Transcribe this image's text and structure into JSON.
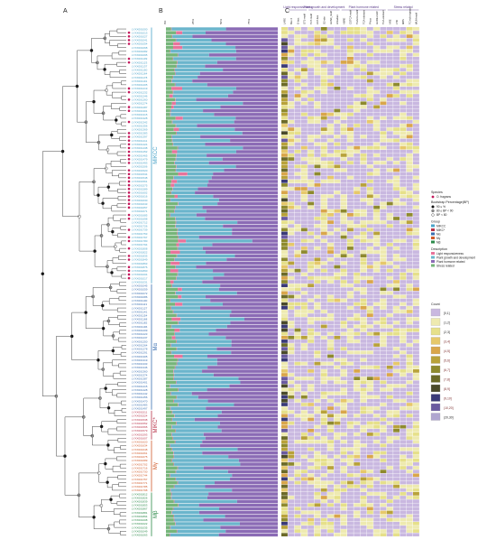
{
  "panels": [
    {
      "id": "tree",
      "label": "A"
    },
    {
      "id": "bars",
      "label": "B"
    },
    {
      "id": "heat",
      "label": "C"
    }
  ],
  "groups": [
    {
      "name": "MIKC C",
      "label": "MIKCC",
      "color": "#4aa3c8",
      "rows": [
        0,
        68
      ]
    },
    {
      "name": "Mα",
      "label": "Mα",
      "color": "#3a6fb0",
      "rows": [
        69,
        102
      ]
    },
    {
      "name": "MIKC*",
      "label": "MIKC*",
      "color": "#b8334a",
      "rows": [
        103,
        110
      ]
    },
    {
      "name": "Mγ",
      "label": "Mγ",
      "color": "#d05a2a",
      "rows": [
        111,
        124
      ]
    },
    {
      "name": "Mβ",
      "label": "Mβ",
      "color": "#2c8a4a",
      "rows": [
        125,
        136
      ]
    }
  ],
  "gene_prefix": "LYXX00",
  "rows": 137,
  "bar_axis_ticks": [
    "0%",
    "25%",
    "50%",
    "75%"
  ],
  "heat_categories": [
    {
      "name": "Light responsiveness",
      "span": [
        1,
        3
      ]
    },
    {
      "name": "Plant growth and development",
      "span": [
        4,
        8
      ]
    },
    {
      "name": "Plant hormone related",
      "span": [
        9,
        15
      ]
    },
    {
      "name": "Stress related",
      "span": [
        16,
        20
      ]
    }
  ],
  "heat_columns": [
    "LARE",
    "Box 4",
    "G-box",
    "GT1-motif",
    "TCT-motif",
    "CAT-box",
    "O2-site",
    "GCN4_motif",
    "circadian",
    "ABRE",
    "CGTCA-motif",
    "TGACG-motif",
    "TGA-element",
    "P-box",
    "GARE-motif",
    "TCA-element",
    "ARE",
    "LTR",
    "MBS",
    "TC-rich repeats",
    "WUN-motif"
  ],
  "legend": {
    "species": {
      "title": "Species",
      "items": [
        {
          "label": "O. fragrans",
          "color": "#c2185b"
        }
      ]
    },
    "bootstrap": {
      "title": "Bootstrap Percentage(BP)",
      "items": [
        "90 ≤ %",
        "80 ≤ BP < 90",
        "BP < 80"
      ]
    },
    "group": {
      "title": "Group",
      "items": [
        {
          "label": "MIKCC",
          "color": "#4aa3c8"
        },
        {
          "label": "MIKC*",
          "color": "#b8334a"
        },
        {
          "label": "Mα",
          "color": "#3a6fb0"
        },
        {
          "label": "Mγ",
          "color": "#d05a2a"
        },
        {
          "label": "Mβ",
          "color": "#2c8a4a"
        }
      ]
    },
    "description": {
      "title": "Description",
      "items": [
        {
          "label": "Light responsiveness",
          "color": "#e8739b"
        },
        {
          "label": "Plant growth and development",
          "color": "#6bb5cc"
        },
        {
          "label": "Plant hormone related",
          "color": "#8b6bb5"
        },
        {
          "label": "Stress related",
          "color": "#76b57a"
        }
      ]
    },
    "count": {
      "title": "Count",
      "items": [
        {
          "label": "[0,1]",
          "color": "#c9b8e0"
        },
        {
          "label": "(1,2]",
          "color": "#eeeab0"
        },
        {
          "label": "(2,3]",
          "color": "#e6e08a"
        },
        {
          "label": "(3,4]",
          "color": "#e6c86a"
        },
        {
          "label": "(4,5]",
          "color": "#d9a64a"
        },
        {
          "label": "(5,6]",
          "color": "#b8a23a"
        },
        {
          "label": "(6,7]",
          "color": "#8e8a2e"
        },
        {
          "label": "(7,8]",
          "color": "#6b6a28"
        },
        {
          "label": "(8,9]",
          "color": "#4a4a2a"
        },
        {
          "label": "(9,10]",
          "color": "#3a3a78"
        },
        {
          "label": "(10,20]",
          "color": "#6a5aa0"
        },
        {
          "label": "(20,30]",
          "color": "#b0a6d0"
        }
      ]
    }
  }
}
